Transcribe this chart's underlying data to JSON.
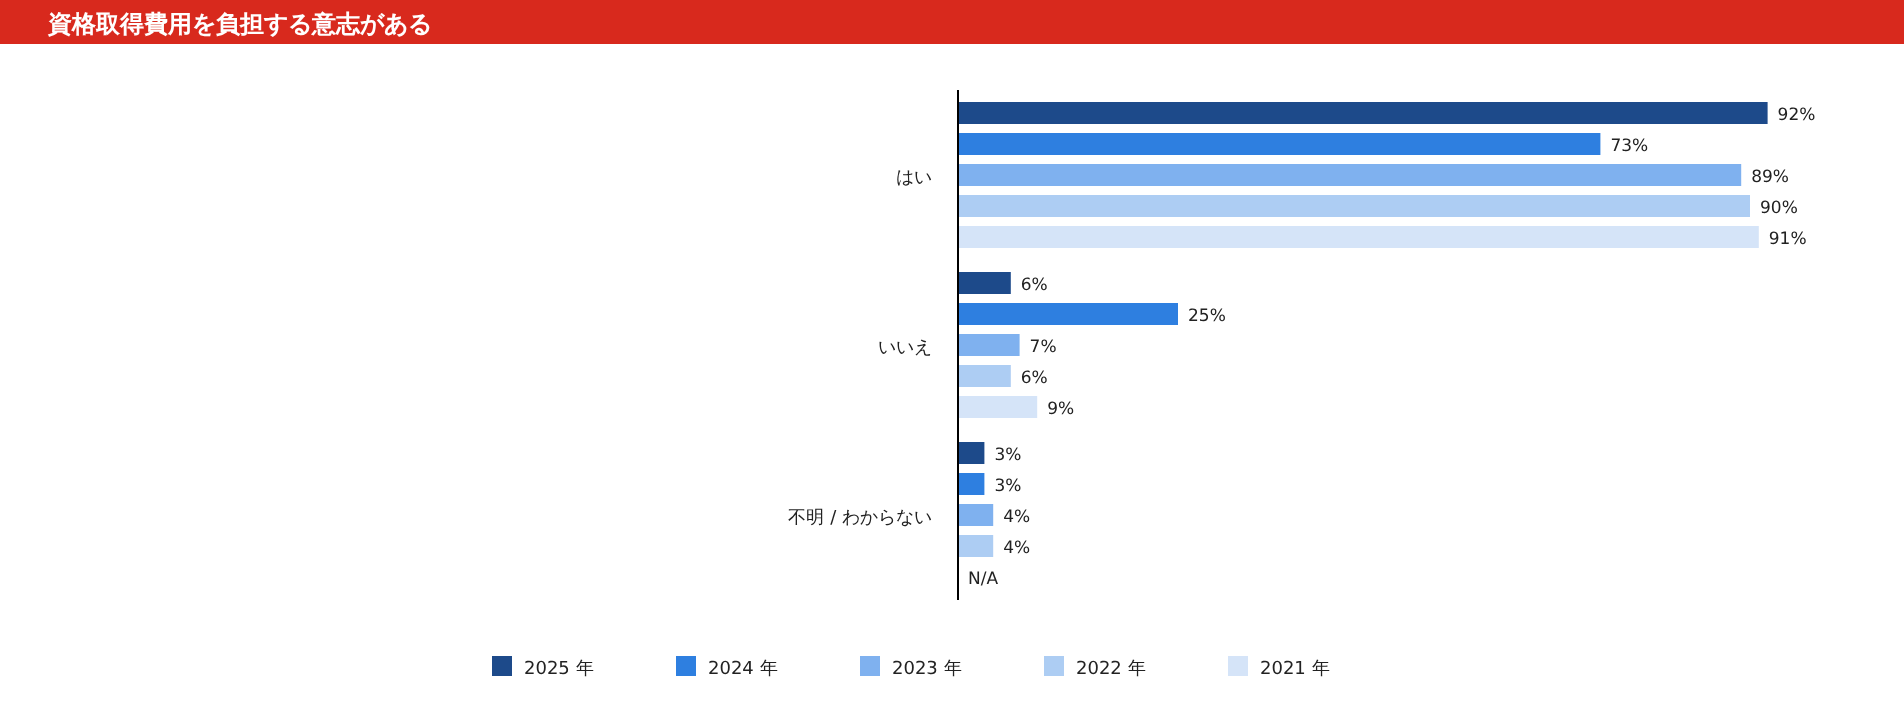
{
  "chart_data": {
    "type": "bar",
    "orientation": "horizontal",
    "title": "資格取得費用を負担する意志がある",
    "categories": [
      "はい",
      "いいえ",
      "不明 / わからない"
    ],
    "series": [
      {
        "name": "2025 年",
        "color": "#1d4a8a",
        "values": [
          92,
          6,
          3
        ],
        "value_labels": [
          "92%",
          "6%",
          "3%"
        ]
      },
      {
        "name": "2024 年",
        "color": "#2e7fe0",
        "values": [
          73,
          25,
          3
        ],
        "value_labels": [
          "73%",
          "25%",
          "3%"
        ]
      },
      {
        "name": "2023 年",
        "color": "#7fb1ef",
        "values": [
          89,
          7,
          4
        ],
        "value_labels": [
          "89%",
          "7%",
          "4%"
        ]
      },
      {
        "name": "2022 年",
        "color": "#adcdf3",
        "values": [
          90,
          6,
          4
        ],
        "value_labels": [
          "90%",
          "6%",
          "4%"
        ]
      },
      {
        "name": "2021 年",
        "color": "#d5e4f8",
        "values": [
          91,
          9,
          null
        ],
        "value_labels": [
          "91%",
          "9%",
          "N/A"
        ]
      }
    ],
    "legend": "bottom"
  }
}
